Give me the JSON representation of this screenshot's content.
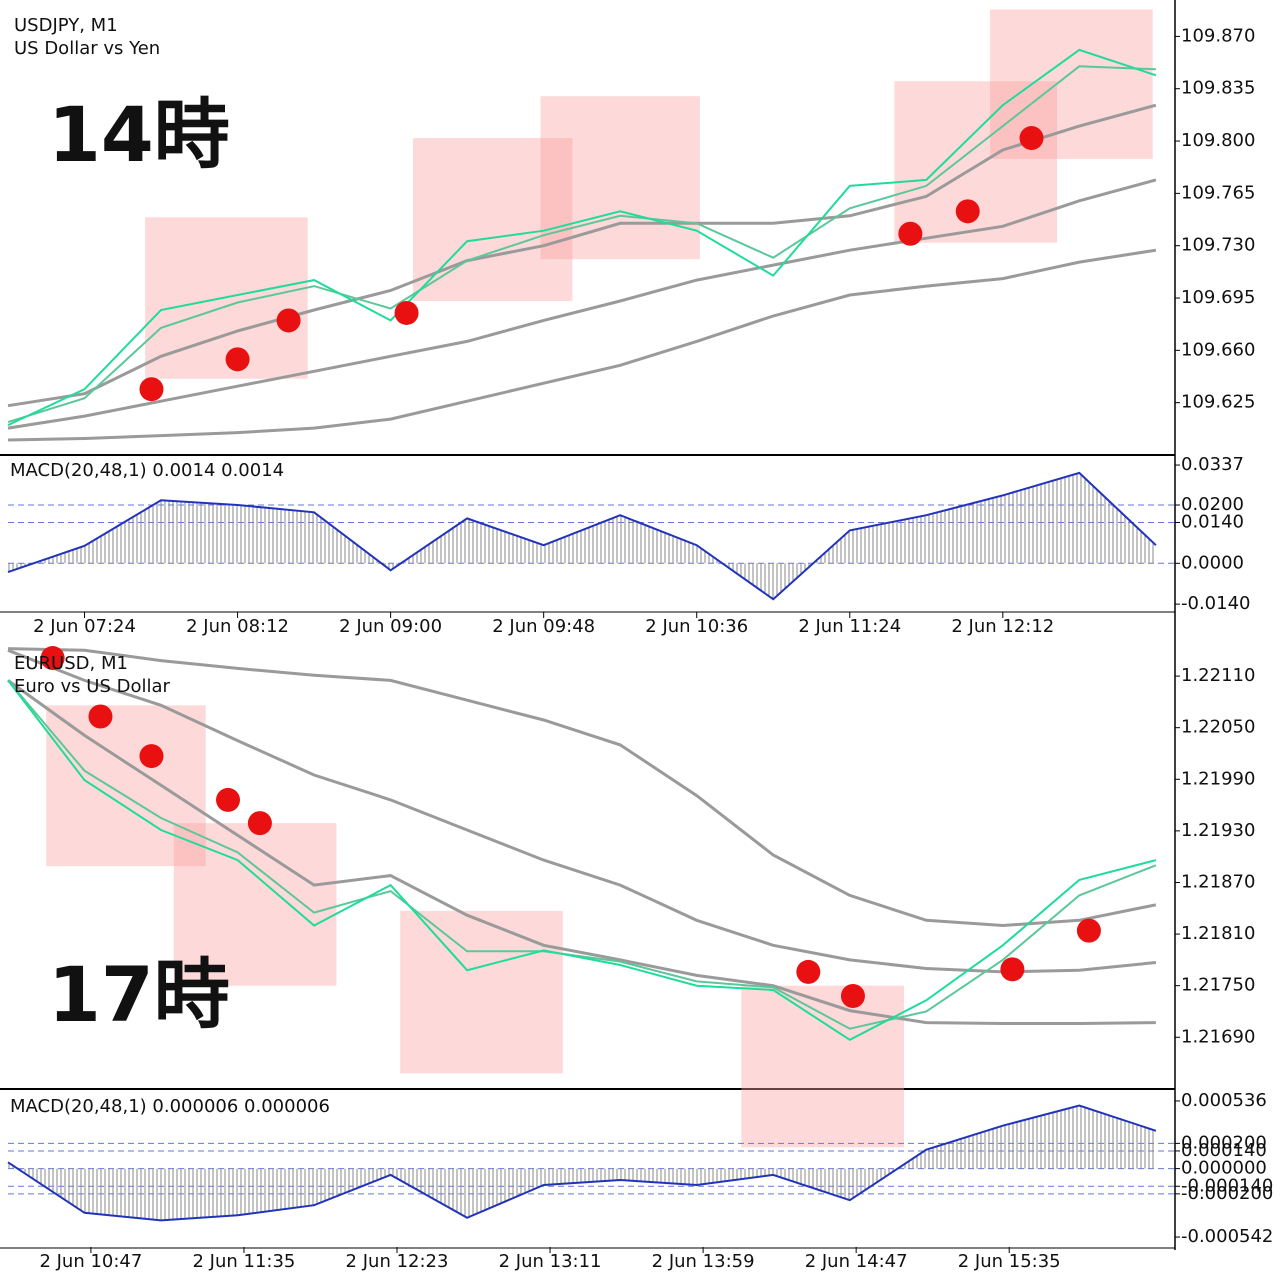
{
  "chart_data": [
    {
      "type": "line",
      "title": "USDJPY, M1",
      "subtitle": "US Dollar vs Yen",
      "annotation": "14時",
      "x": [
        "2 Jun 07:00",
        "2 Jun 07:24",
        "2 Jun 07:48",
        "2 Jun 08:12",
        "2 Jun 08:36",
        "2 Jun 09:00",
        "2 Jun 09:24",
        "2 Jun 09:48",
        "2 Jun 10:12",
        "2 Jun 10:36",
        "2 Jun 11:00",
        "2 Jun 11:24",
        "2 Jun 11:48",
        "2 Jun 12:12",
        "2 Jun 12:36",
        "2 Jun 13:00"
      ],
      "xlim": [
        "2 Jun 07:00",
        "2 Jun 13:06"
      ],
      "ylim": [
        109.592,
        109.889
      ],
      "yticks": [
        109.625,
        {
          "value": 109.66,
          "label": "109.660"
        },
        109.695,
        {
          "value": 109.73,
          "label": "109.730"
        },
        109.765,
        {
          "value": 109.8,
          "label": "109.800"
        },
        109.835,
        {
          "value": 109.87,
          "label": "109.870"
        }
      ],
      "series": [
        {
          "color": "#9a9a9a",
          "values": [
            109.6,
            109.601,
            109.603,
            109.605,
            109.608,
            109.614,
            109.626,
            109.638,
            109.65,
            109.666,
            109.683,
            109.697,
            109.703,
            109.708,
            109.719,
            109.727
          ]
        },
        {
          "color": "#9a9a9a",
          "values": [
            109.608,
            109.616,
            109.626,
            109.636,
            109.646,
            109.656,
            109.666,
            109.68,
            109.693,
            109.707,
            109.717,
            109.727,
            109.735,
            109.743,
            109.76,
            109.774
          ]
        },
        {
          "color": "#9a9a9a",
          "values": [
            109.623,
            109.631,
            109.656,
            109.673,
            109.687,
            109.7,
            109.72,
            109.73,
            109.745,
            109.745,
            109.745,
            109.75,
            109.763,
            109.794,
            109.81,
            109.824
          ]
        },
        {
          "color": "#5cc79a",
          "values": [
            109.612,
            109.628,
            109.675,
            109.692,
            109.703,
            109.688,
            109.72,
            109.737,
            109.75,
            109.745,
            109.722,
            109.755,
            109.77,
            109.81,
            109.85,
            109.848
          ]
        },
        {
          "color": "#1fdc9a",
          "values": [
            109.61,
            109.634,
            109.687,
            109.697,
            109.707,
            109.68,
            109.733,
            109.74,
            109.753,
            109.74,
            109.71,
            109.77,
            109.774,
            109.824,
            109.861,
            109.844
          ]
        }
      ],
      "markers": {
        "color": "#e81010",
        "x": [
          "2 Jun 07:45",
          "2 Jun 08:12",
          "2 Jun 08:28",
          "2 Jun 09:05",
          "2 Jun 11:43",
          "2 Jun 12:01",
          "2 Jun 12:21"
        ],
        "y": [
          109.634,
          109.654,
          109.68,
          109.685,
          109.738,
          109.753,
          109.802
        ]
      },
      "zones": [
        {
          "x": [
            "2 Jun 07:43",
            "2 Jun 08:34"
          ],
          "y": [
            109.641,
            109.749
          ]
        },
        {
          "x": [
            "2 Jun 09:07",
            "2 Jun 09:57"
          ],
          "y": [
            109.693,
            109.802
          ]
        },
        {
          "x": [
            "2 Jun 09:47",
            "2 Jun 10:37"
          ],
          "y": [
            109.721,
            109.83
          ]
        },
        {
          "x": [
            "2 Jun 11:38",
            "2 Jun 12:29"
          ],
          "y": [
            109.732,
            109.84
          ]
        },
        {
          "x": [
            "2 Jun 12:08",
            "2 Jun 12:59"
          ],
          "y": [
            109.788,
            109.888
          ]
        }
      ]
    },
    {
      "type": "macd",
      "title": "MACD(20,48,1) 0.0014 0.0014",
      "x": [
        "2 Jun 07:00",
        "2 Jun 07:24",
        "2 Jun 07:48",
        "2 Jun 08:12",
        "2 Jun 08:36",
        "2 Jun 09:00",
        "2 Jun 09:24",
        "2 Jun 09:48",
        "2 Jun 10:12",
        "2 Jun 10:36",
        "2 Jun 11:00",
        "2 Jun 11:24",
        "2 Jun 11:48",
        "2 Jun 12:12",
        "2 Jun 12:36",
        "2 Jun 13:00"
      ],
      "xlim": [
        "2 Jun 07:00",
        "2 Jun 13:06"
      ],
      "xticks": [
        "2 Jun 07:24",
        "2 Jun 08:12",
        "2 Jun 09:00",
        "2 Jun 09:48",
        "2 Jun 10:36",
        "2 Jun 11:24",
        "2 Jun 12:12"
      ],
      "ylim": [
        -0.0167,
        0.0368
      ],
      "yticks": [
        {
          "value": -0.014,
          "label": "-0.0140"
        },
        {
          "value": 0,
          "label": "0.0000"
        },
        {
          "value": 0.014,
          "label": "0.0140"
        },
        {
          "value": 0.02,
          "label": "0.0200"
        },
        0.0337
      ],
      "color": "#2233bb",
      "values": [
        -0.003,
        0.006,
        0.0216,
        0.02,
        0.0175,
        -0.0024,
        0.0154,
        0.0062,
        0.0165,
        0.0062,
        -0.0123,
        0.0113,
        0.0165,
        0.0233,
        0.031,
        0.0062
      ]
    },
    {
      "type": "line",
      "title": "EURUSD, M1",
      "subtitle": "Euro vs US Dollar",
      "annotation": "17時",
      "x": [
        "2 Jun 10:21",
        "2 Jun 10:45",
        "2 Jun 11:09",
        "2 Jun 11:33",
        "2 Jun 11:57",
        "2 Jun 12:21",
        "2 Jun 12:45",
        "2 Jun 13:09",
        "2 Jun 13:33",
        "2 Jun 13:57",
        "2 Jun 14:21",
        "2 Jun 14:45",
        "2 Jun 15:09",
        "2 Jun 15:33",
        "2 Jun 15:57",
        "2 Jun 16:21"
      ],
      "xlim": [
        "2 Jun 10:21",
        "2 Jun 16:27"
      ],
      "ylim": [
        1.21631,
        1.22145
      ],
      "yticks": [
        {
          "value": 1.2169,
          "label": "1.21690"
        },
        {
          "value": 1.2175,
          "label": "1.21750"
        },
        {
          "value": 1.2181,
          "label": "1.21810"
        },
        {
          "value": 1.2187,
          "label": "1.21870"
        },
        {
          "value": 1.2193,
          "label": "1.21930"
        },
        {
          "value": 1.2199,
          "label": "1.21990"
        },
        {
          "value": 1.2205,
          "label": "1.22050"
        },
        {
          "value": 1.2211,
          "label": "1.22110"
        }
      ],
      "series": [
        {
          "color": "#9a9a9a",
          "values": [
            1.22142,
            1.2214,
            1.22128,
            1.22119,
            1.22111,
            1.22105,
            1.22082,
            1.22059,
            1.2203,
            1.21971,
            1.21902,
            1.21855,
            1.21826,
            1.2182,
            1.21826,
            1.21844
          ]
        },
        {
          "color": "#9a9a9a",
          "values": [
            1.2214,
            1.22105,
            1.22076,
            1.22035,
            1.21995,
            1.21966,
            1.21931,
            1.21896,
            1.21867,
            1.21826,
            1.21797,
            1.2178,
            1.2177,
            1.21766,
            1.21768,
            1.21777
          ]
        },
        {
          "color": "#9a9a9a",
          "values": [
            1.22105,
            1.22041,
            1.21983,
            1.21925,
            1.21867,
            1.21878,
            1.21832,
            1.21797,
            1.2178,
            1.21762,
            1.2175,
            1.21721,
            1.21707,
            1.21706,
            1.21706,
            1.21707
          ]
        },
        {
          "color": "#5cc79a",
          "values": [
            1.22105,
            1.22,
            1.21945,
            1.21905,
            1.21835,
            1.2186,
            1.2179,
            1.2179,
            1.21778,
            1.21755,
            1.21748,
            1.217,
            1.2172,
            1.2178,
            1.21855,
            1.2189
          ]
        },
        {
          "color": "#1fdc9a",
          "values": [
            1.22105,
            1.21989,
            1.21931,
            1.21896,
            1.2182,
            1.21867,
            1.21768,
            1.21791,
            1.21774,
            1.2175,
            1.21745,
            1.21687,
            1.21733,
            1.21797,
            1.21873,
            1.21896
          ]
        }
      ],
      "markers": {
        "color": "#e81010",
        "x": [
          "2 Jun 10:35",
          "2 Jun 10:50",
          "2 Jun 11:06",
          "2 Jun 11:30",
          "2 Jun 11:40",
          "2 Jun 14:32",
          "2 Jun 14:46",
          "2 Jun 15:36",
          "2 Jun 16:00"
        ],
        "y": [
          1.22131,
          1.22063,
          1.22017,
          1.21966,
          1.21939,
          1.21766,
          1.21738,
          1.21769,
          1.21814
        ]
      },
      "zones": [
        {
          "x": [
            "2 Jun 10:33",
            "2 Jun 11:23"
          ],
          "y": [
            1.21889,
            1.22076
          ]
        },
        {
          "x": [
            "2 Jun 11:13",
            "2 Jun 12:04"
          ],
          "y": [
            1.2175,
            1.21939
          ]
        },
        {
          "x": [
            "2 Jun 12:24",
            "2 Jun 13:15"
          ],
          "y": [
            1.21648,
            1.21837
          ]
        },
        {
          "x": [
            "2 Jun 14:11",
            "2 Jun 15:02"
          ],
          "y": [
            1.21562,
            1.2175
          ]
        }
      ]
    },
    {
      "type": "macd",
      "title": "MACD(20,48,1) 0.000006 0.000006",
      "x": [
        "2 Jun 10:21",
        "2 Jun 10:45",
        "2 Jun 11:09",
        "2 Jun 11:33",
        "2 Jun 11:57",
        "2 Jun 12:21",
        "2 Jun 12:45",
        "2 Jun 13:09",
        "2 Jun 13:33",
        "2 Jun 13:57",
        "2 Jun 14:21",
        "2 Jun 14:45",
        "2 Jun 15:09",
        "2 Jun 15:33",
        "2 Jun 15:57",
        "2 Jun 16:21"
      ],
      "xlim": [
        "2 Jun 10:21",
        "2 Jun 16:27"
      ],
      "xticks": [
        "2 Jun 10:47",
        "2 Jun 11:35",
        "2 Jun 12:23",
        "2 Jun 13:11",
        "2 Jun 13:59",
        "2 Jun 14:47",
        "2 Jun 15:35"
      ],
      "ylim": [
        -0.000621,
        0.000607
      ],
      "yticks": [
        -0.000542,
        {
          "value": -0.0002,
          "label": "-0.000200"
        },
        {
          "value": -0.00014,
          "label": "-0.000140"
        },
        {
          "value": 0,
          "label": "0.000000"
        },
        {
          "value": 0.00014,
          "label": "0.000140"
        },
        {
          "value": 0.0002,
          "label": "0.000200"
        },
        0.000536
      ],
      "color": "#2233bb",
      "values": [
        5e-05,
        -0.00035,
        -0.00041,
        -0.00037,
        -0.00029,
        -5e-05,
        -0.00039,
        -0.00013,
        -9e-05,
        -0.00013,
        -5e-05,
        -0.00025,
        0.00015,
        0.00034,
        0.0005,
        0.0003
      ]
    }
  ]
}
